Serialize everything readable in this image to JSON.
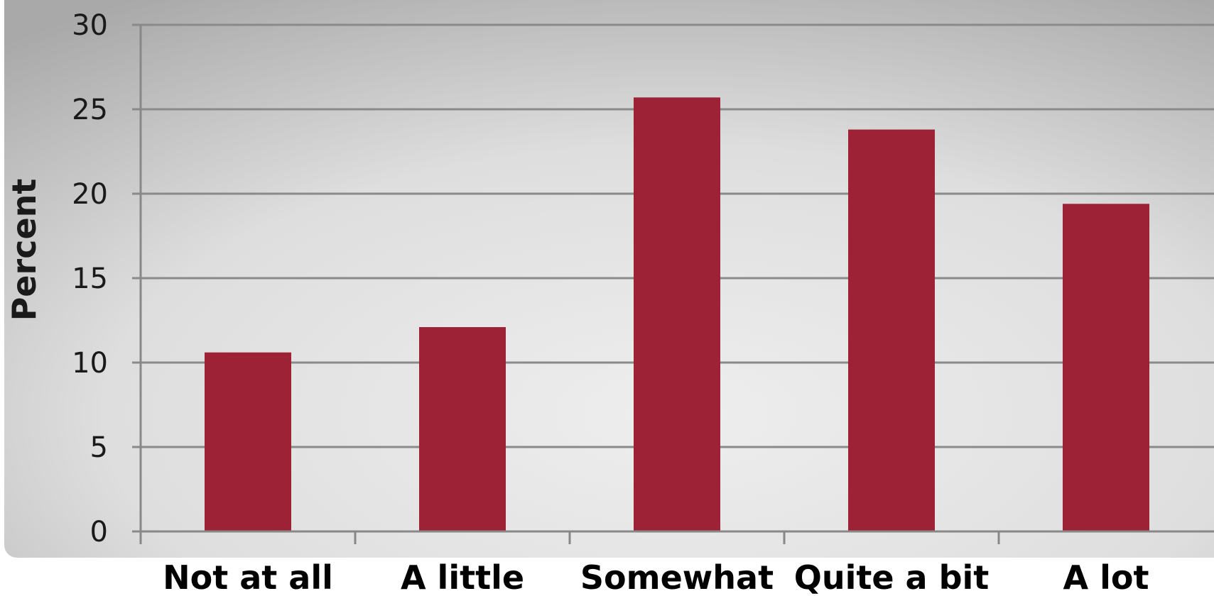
{
  "chart_data": {
    "type": "bar",
    "categories": [
      "Not at all",
      "A little",
      "Somewhat",
      "Quite a bit",
      "A lot"
    ],
    "values": [
      10.6,
      12.1,
      25.7,
      23.8,
      19.4
    ],
    "title": "",
    "xlabel": "",
    "ylabel": "Percent",
    "ylim": [
      0,
      30
    ],
    "yticks": [
      0,
      5,
      10,
      15,
      20,
      25,
      30
    ],
    "grid": true,
    "legend": "none",
    "bar_color": "#9E2235",
    "background": "gray radial gradient"
  }
}
